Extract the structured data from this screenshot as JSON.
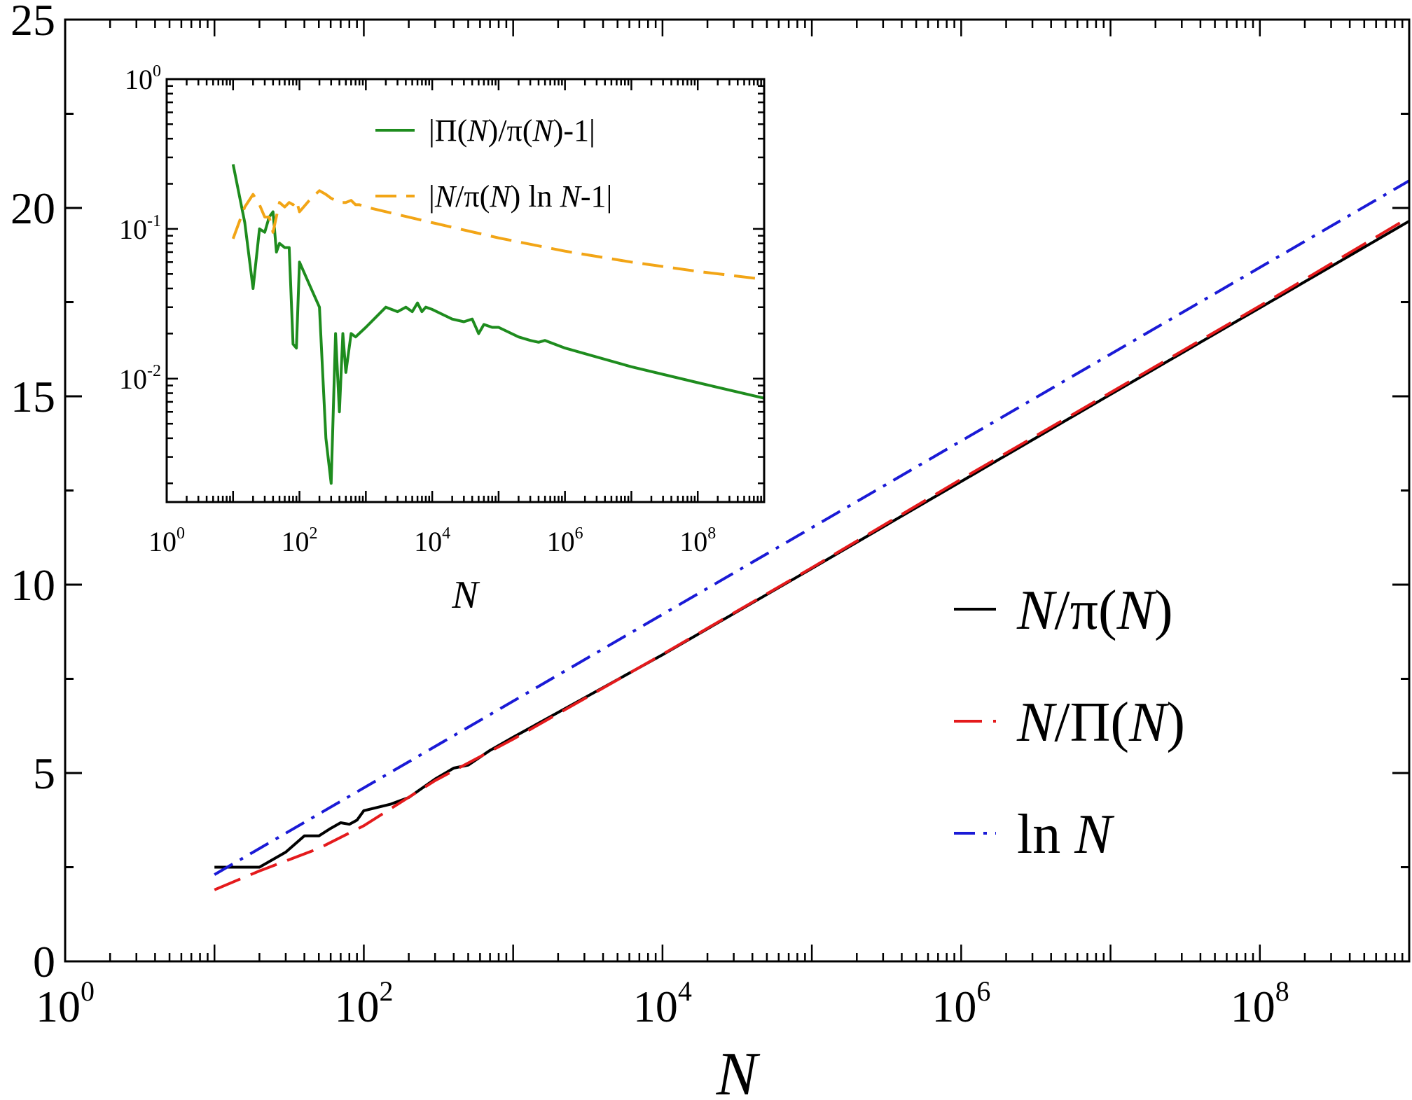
{
  "chart_data": [
    {
      "type": "line",
      "title": "",
      "xlabel": "N",
      "ylabel": "",
      "xscale": "log",
      "xlim": [
        1,
        1000000000
      ],
      "ylim": [
        0,
        25
      ],
      "yticks": [
        0,
        5,
        10,
        15,
        20,
        25
      ],
      "xticks": [
        {
          "base": "10",
          "exp": "0"
        },
        {
          "base": "10",
          "exp": "2"
        },
        {
          "base": "10",
          "exp": "4"
        },
        {
          "base": "10",
          "exp": "6"
        },
        {
          "base": "10",
          "exp": "8"
        }
      ],
      "legend_position": "bottom-right",
      "series": [
        {
          "name": "N/π(N)",
          "legend_parts": [
            {
              "t": "N",
              "i": true
            },
            {
              "t": "/π(",
              "i": false
            },
            {
              "t": "N",
              "i": true
            },
            {
              "t": ")",
              "i": false
            }
          ],
          "color": "#000000",
          "dash": "solid",
          "points": [
            [
              10,
              2.5
            ],
            [
              20,
              2.5
            ],
            [
              30,
              2.9
            ],
            [
              40,
              3.33
            ],
            [
              50,
              3.33
            ],
            [
              60,
              3.53
            ],
            [
              70,
              3.68
            ],
            [
              80,
              3.64
            ],
            [
              90,
              3.75
            ],
            [
              100,
              4.0
            ],
            [
              150,
              4.17
            ],
            [
              200,
              4.35
            ],
            [
              300,
              4.84
            ],
            [
              400,
              5.13
            ],
            [
              500,
              5.21
            ],
            [
              700,
              5.6
            ],
            [
              1000,
              5.95
            ],
            [
              10000,
              8.14
            ],
            [
              100000,
              10.43
            ],
            [
              1000000,
              12.74
            ],
            [
              10000000,
              15.05
            ],
            [
              100000000,
              17.35
            ],
            [
              1000000000,
              19.65
            ]
          ]
        },
        {
          "name": "N/Π(N)",
          "legend_parts": [
            {
              "t": "N",
              "i": true
            },
            {
              "t": "/Π(",
              "i": false
            },
            {
              "t": "N",
              "i": true
            },
            {
              "t": ")",
              "i": false
            }
          ],
          "color": "#e41a1c",
          "dash": "dashed",
          "points": [
            [
              10,
              1.9
            ],
            [
              20,
              2.4
            ],
            [
              50,
              3.0
            ],
            [
              100,
              3.6
            ],
            [
              300,
              4.8
            ],
            [
              1000,
              5.9
            ],
            [
              10000,
              8.15
            ],
            [
              100000,
              10.45
            ],
            [
              1000000,
              12.8
            ],
            [
              10000000,
              15.1
            ],
            [
              100000000,
              17.4
            ],
            [
              1000000000,
              19.75
            ]
          ]
        },
        {
          "name": "ln N",
          "legend_parts": [
            {
              "t": "ln ",
              "i": false
            },
            {
              "t": "N",
              "i": true
            }
          ],
          "color": "#1a1ad6",
          "dash": "dashdot",
          "points": [
            [
              10,
              2.303
            ],
            [
              1000000000,
              20.723
            ]
          ]
        }
      ]
    },
    {
      "type": "line",
      "title": "",
      "xlabel": "N",
      "ylabel": "",
      "xscale": "log",
      "yscale": "log",
      "xlim": [
        1,
        1000000000
      ],
      "ylim": [
        0.0015,
        1
      ],
      "xticks": [
        {
          "base": "10",
          "exp": "0"
        },
        {
          "base": "10",
          "exp": "2"
        },
        {
          "base": "10",
          "exp": "4"
        },
        {
          "base": "10",
          "exp": "6"
        },
        {
          "base": "10",
          "exp": "8"
        }
      ],
      "yticks": [
        {
          "value": 1,
          "base": "10",
          "exp": "0"
        },
        {
          "value": 0.1,
          "base": "10",
          "exp": "-1"
        },
        {
          "value": 0.01,
          "base": "10",
          "exp": "-2"
        }
      ],
      "legend_position": "top-right",
      "series": [
        {
          "name": "|Π(N)/π(N)-1|",
          "legend_parts": [
            {
              "t": "|Π(",
              "i": false
            },
            {
              "t": "N",
              "i": true
            },
            {
              "t": ")/π(",
              "i": false
            },
            {
              "t": "N",
              "i": true
            },
            {
              "t": ")-1|",
              "i": false
            }
          ],
          "color": "#1e8c1e",
          "dash": "solid",
          "points": [
            [
              10,
              0.27
            ],
            [
              15,
              0.11
            ],
            [
              20,
              0.04
            ],
            [
              25,
              0.1
            ],
            [
              30,
              0.095
            ],
            [
              35,
              0.12
            ],
            [
              40,
              0.13
            ],
            [
              45,
              0.07
            ],
            [
              50,
              0.08
            ],
            [
              60,
              0.075
            ],
            [
              70,
              0.075
            ],
            [
              80,
              0.017
            ],
            [
              90,
              0.016
            ],
            [
              100,
              0.06
            ],
            [
              150,
              0.04
            ],
            [
              200,
              0.03
            ],
            [
              250,
              0.004
            ],
            [
              300,
              0.002
            ],
            [
              350,
              0.02
            ],
            [
              400,
              0.006
            ],
            [
              450,
              0.02
            ],
            [
              500,
              0.011
            ],
            [
              600,
              0.02
            ],
            [
              700,
              0.019
            ],
            [
              1000,
              0.022
            ],
            [
              2000,
              0.03
            ],
            [
              3000,
              0.028
            ],
            [
              4000,
              0.03
            ],
            [
              5000,
              0.028
            ],
            [
              6000,
              0.032
            ],
            [
              7000,
              0.028
            ],
            [
              8000,
              0.03
            ],
            [
              10000,
              0.029
            ],
            [
              20000,
              0.025
            ],
            [
              30000,
              0.024
            ],
            [
              40000,
              0.025
            ],
            [
              50000,
              0.02
            ],
            [
              60000,
              0.023
            ],
            [
              80000,
              0.022
            ],
            [
              100000,
              0.022
            ],
            [
              200000,
              0.019
            ],
            [
              300000,
              0.018
            ],
            [
              400000,
              0.0175
            ],
            [
              500000,
              0.018
            ],
            [
              1000000,
              0.016
            ],
            [
              10000000,
              0.012
            ],
            [
              100000000,
              0.0094
            ],
            [
              1000000000,
              0.0074
            ]
          ]
        },
        {
          "name": "|N/π(N) ln N-1|",
          "legend_parts": [
            {
              "t": "|",
              "i": false
            },
            {
              "t": "N",
              "i": true
            },
            {
              "t": "/π(",
              "i": false
            },
            {
              "t": "N",
              "i": true
            },
            {
              "t": ") ln ",
              "i": false
            },
            {
              "t": "N",
              "i": true
            },
            {
              "t": "-1|",
              "i": false
            }
          ],
          "color": "#f2a516",
          "dash": "dashed",
          "points": [
            [
              10,
              0.086
            ],
            [
              15,
              0.14
            ],
            [
              20,
              0.17
            ],
            [
              25,
              0.145
            ],
            [
              30,
              0.12
            ],
            [
              35,
              0.12
            ],
            [
              40,
              0.095
            ],
            [
              50,
              0.15
            ],
            [
              60,
              0.14
            ],
            [
              70,
              0.15
            ],
            [
              80,
              0.145
            ],
            [
              90,
              0.155
            ],
            [
              100,
              0.13
            ],
            [
              150,
              0.16
            ],
            [
              200,
              0.18
            ],
            [
              250,
              0.17
            ],
            [
              300,
              0.16
            ],
            [
              400,
              0.15
            ],
            [
              500,
              0.15
            ],
            [
              600,
              0.155
            ],
            [
              700,
              0.145
            ],
            [
              800,
              0.145
            ],
            [
              1000,
              0.14
            ],
            [
              10000,
              0.11
            ],
            [
              100000,
              0.087
            ],
            [
              1000000,
              0.071
            ],
            [
              10000000,
              0.06
            ],
            [
              100000000,
              0.052
            ],
            [
              1000000000,
              0.046
            ]
          ]
        }
      ]
    }
  ]
}
